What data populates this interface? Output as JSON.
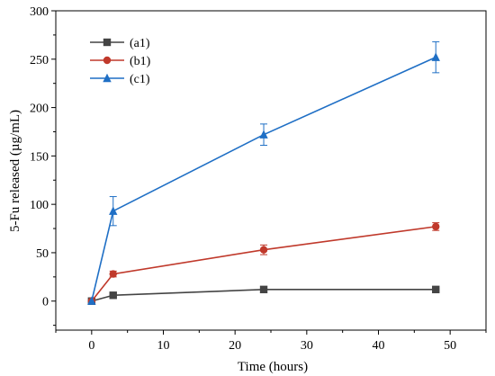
{
  "chart_data": {
    "type": "line",
    "title": "",
    "xlabel": "Time (hours)",
    "ylabel": "5-Fu released (µg/mL)",
    "xlim": [
      -5,
      55
    ],
    "ylim": [
      -30,
      300
    ],
    "xticks": [
      0,
      10,
      20,
      30,
      40,
      50
    ],
    "yticks": [
      0,
      50,
      100,
      150,
      200,
      250,
      300
    ],
    "grid": false,
    "legend_position": "top-left",
    "series": [
      {
        "name": "(a1)",
        "color": "#444444",
        "marker": "square",
        "x": [
          0,
          3,
          24,
          48
        ],
        "y": [
          0,
          6,
          12,
          12
        ],
        "error": [
          0,
          1,
          1,
          1
        ]
      },
      {
        "name": "(b1)",
        "color": "#c0392b",
        "marker": "circle",
        "x": [
          0,
          3,
          24,
          48
        ],
        "y": [
          0,
          28,
          53,
          77
        ],
        "error": [
          0,
          3,
          5,
          4
        ]
      },
      {
        "name": "(c1)",
        "color": "#1f6fc5",
        "marker": "triangle",
        "x": [
          0,
          3,
          24,
          48
        ],
        "y": [
          0,
          93,
          172,
          252
        ],
        "error": [
          0,
          15,
          11,
          16
        ]
      }
    ]
  }
}
